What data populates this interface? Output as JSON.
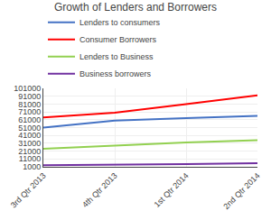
{
  "chart_data": {
    "type": "line",
    "title": "Growth of Lenders and Borrowers",
    "categories": [
      "3rd Qtr 2013",
      "4th Qtr 2013",
      "1st Qtr 2014",
      "2nd Qtr 2014"
    ],
    "series": [
      {
        "name": "Lenders to consumers",
        "color": "#4472C4",
        "values": [
          51000,
          60000,
          63000,
          66000
        ]
      },
      {
        "name": "Consumer Borrowers",
        "color": "#FF0000",
        "values": [
          64000,
          70000,
          81000,
          92000
        ]
      },
      {
        "name": "Lenders to Business",
        "color": "#92D050",
        "values": [
          24000,
          28000,
          32000,
          35000
        ]
      },
      {
        "name": "Business borrowers",
        "color": "#7030A0",
        "values": [
          3000,
          3500,
          4500,
          5500
        ]
      }
    ],
    "ylim": [
      1000,
      101000
    ],
    "yticks": [
      1000,
      11000,
      21000,
      31000,
      41000,
      51000,
      61000,
      71000,
      81000,
      91000,
      101000
    ],
    "grid": true,
    "legend": "top"
  }
}
